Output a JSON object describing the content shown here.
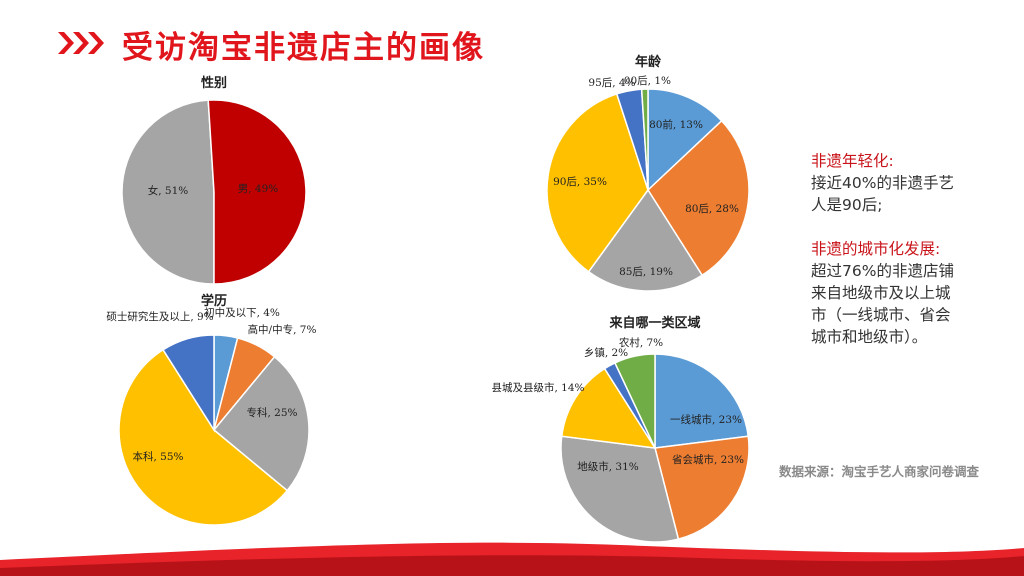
{
  "page": {
    "title": "受访淘宝非遗店主的画像",
    "source": "数据来源：淘宝手艺人商家问卷调查"
  },
  "notes": {
    "p1_title": "非遗年轻化:",
    "p1_line1": "接近40%的非遗手艺",
    "p1_line2": "人是90后;",
    "p2_title": "非遗的城市化发展:",
    "p2_line1": "超过76%的非遗店铺",
    "p2_line2": "来自地级市及以上城",
    "p2_line3": "市（一线城市、省会",
    "p2_line4": "城市和地级市）。"
  },
  "colors": {
    "accent": "#e0161c",
    "red": "#c00000",
    "gray": "#a5a5a5",
    "blue": "#4472c4",
    "orange": "#ed7d31",
    "yellow": "#ffc000",
    "green": "#70ad47",
    "lightblue": "#5b9bd5"
  },
  "chart_data": [
    {
      "type": "pie",
      "title": "性别",
      "slices": [
        {
          "label": "男, 49%",
          "value": 49,
          "color": "#a5a5a5"
        },
        {
          "label": "女, 51%",
          "value": 51,
          "color": "#c00000"
        }
      ]
    },
    {
      "type": "pie",
      "title": "年龄",
      "slices": [
        {
          "label": "80前, 13%",
          "value": 13,
          "color": "#5b9bd5"
        },
        {
          "label": "80后, 28%",
          "value": 28,
          "color": "#ed7d31"
        },
        {
          "label": "85后, 19%",
          "value": 19,
          "color": "#a5a5a5"
        },
        {
          "label": "90后, 35%",
          "value": 35,
          "color": "#ffc000"
        },
        {
          "label": "95后, 4%",
          "value": 4,
          "color": "#4472c4"
        },
        {
          "label": "00后, 1%",
          "value": 1,
          "color": "#70ad47"
        }
      ]
    },
    {
      "type": "pie",
      "title": "学历",
      "slices": [
        {
          "label": "初中及以下, 4%",
          "value": 4,
          "color": "#5b9bd5"
        },
        {
          "label": "高中/中专, 7%",
          "value": 7,
          "color": "#ed7d31"
        },
        {
          "label": "专科, 25%",
          "value": 25,
          "color": "#a5a5a5"
        },
        {
          "label": "本科, 55%",
          "value": 55,
          "color": "#ffc000"
        },
        {
          "label": "硕士研究生及以上, 9%",
          "value": 9,
          "color": "#4472c4"
        }
      ]
    },
    {
      "type": "pie",
      "title": "来自哪一类区域",
      "slices": [
        {
          "label": "一线城市, 23%",
          "value": 23,
          "color": "#5b9bd5"
        },
        {
          "label": "省会城市, 23%",
          "value": 23,
          "color": "#ed7d31"
        },
        {
          "label": "地级市, 31%",
          "value": 31,
          "color": "#a5a5a5"
        },
        {
          "label": "县城及县级市, 14%",
          "value": 14,
          "color": "#ffc000"
        },
        {
          "label": "乡镇, 2%",
          "value": 2,
          "color": "#4472c4"
        },
        {
          "label": "农村, 7%",
          "value": 7,
          "color": "#70ad47"
        }
      ]
    }
  ]
}
